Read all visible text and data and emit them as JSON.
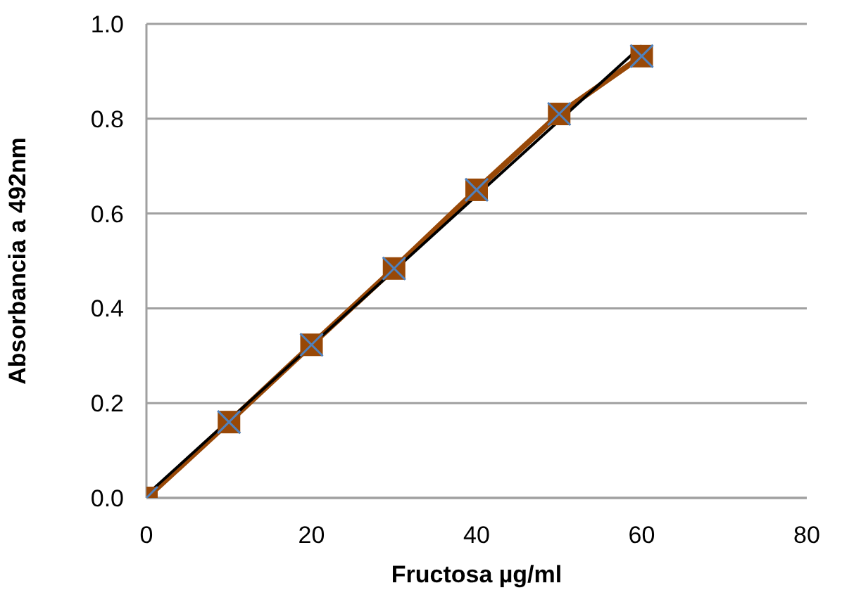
{
  "chart_data": {
    "type": "line",
    "xlabel": "Fructosa µg/ml",
    "ylabel": "Absorbancia a 492nm",
    "x": [
      0,
      10,
      20,
      30,
      40,
      50,
      60
    ],
    "series": [
      {
        "color": "#984807",
        "marker": "square",
        "line_style": "solid",
        "values": [
          0,
          0.16,
          0.323,
          0.484,
          0.65,
          0.81,
          0.932
        ]
      },
      {
        "type": "scatter",
        "color": "#4f81bd",
        "marker": "cross",
        "values": [
          0,
          0.16,
          0.323,
          0.484,
          0.65,
          0.81,
          0.932
        ]
      },
      {
        "type": "line",
        "color": "#000000",
        "marker": "none",
        "line_style": "solid",
        "x": [
          0,
          60
        ],
        "values": [
          0.006,
          0.954
        ]
      }
    ],
    "xlim": [
      0,
      80
    ],
    "xticks": [
      0,
      20,
      40,
      60,
      80
    ],
    "ylim": [
      0,
      1
    ],
    "yticks": [
      {
        "value": 0,
        "label": "0.0"
      },
      0.2,
      0.4,
      0.6,
      0.8,
      {
        "value": 1,
        "label": "1.0"
      }
    ],
    "grid": "y",
    "legend": false
  }
}
